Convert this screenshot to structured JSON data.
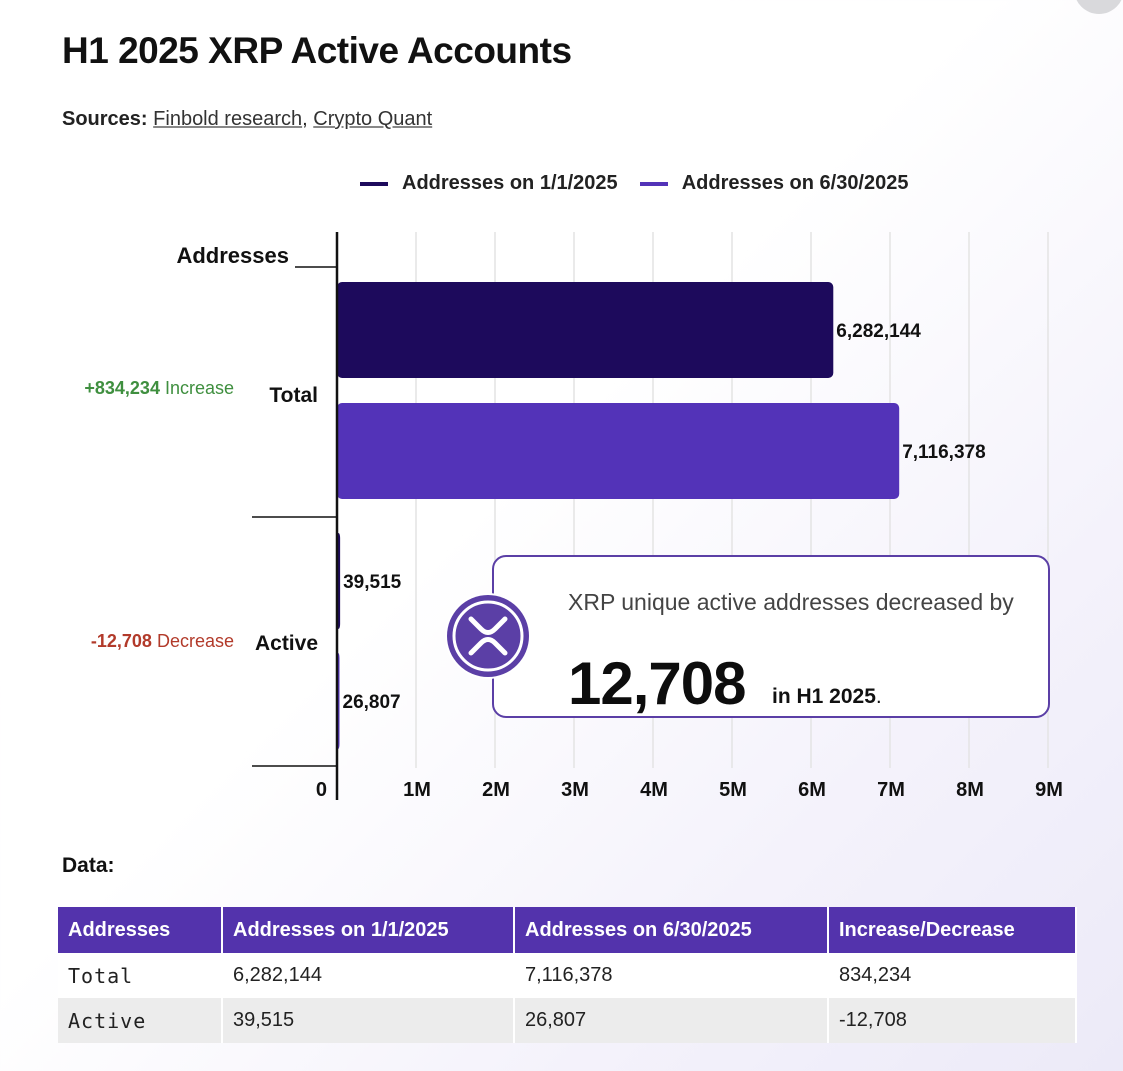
{
  "title": "H1 2025 XRP Active Accounts",
  "sources": {
    "label": "Sources:",
    "links": [
      "Finbold research",
      "Crypto Quant"
    ],
    "separator": ", "
  },
  "colors": {
    "series1": "#1d0a5c",
    "series2": "#5333b8",
    "increase": "#3f8f3f",
    "decrease": "#b23a2a",
    "grid": "#e4e4e4",
    "accent": "#5b3fa6"
  },
  "chart_data": {
    "type": "bar",
    "orientation": "horizontal",
    "axis_title": "Addresses",
    "categories": [
      "Total",
      "Active"
    ],
    "series": [
      {
        "name": "Addresses on 1/1/2025",
        "values": [
          6282144,
          39515
        ],
        "labels": [
          "6,282,144",
          "39,515"
        ]
      },
      {
        "name": "Addresses on 6/30/2025",
        "values": [
          7116378,
          26807
        ],
        "labels": [
          "7,116,378",
          "26,807"
        ]
      }
    ],
    "xlim": [
      0,
      9000000
    ],
    "x_ticks": [
      0,
      1000000,
      2000000,
      3000000,
      4000000,
      5000000,
      6000000,
      7000000,
      8000000,
      9000000
    ],
    "x_tick_labels": [
      "0",
      "1M",
      "2M",
      "3M",
      "4M",
      "5M",
      "6M",
      "7M",
      "8M",
      "9M"
    ],
    "grid": true,
    "legend_position": "top",
    "change_annotations": [
      {
        "value": "+834,234",
        "word": "Increase",
        "kind": "increase"
      },
      {
        "value": "-12,708",
        "word": "Decrease",
        "kind": "decrease"
      }
    ]
  },
  "callout": {
    "text": "XRP unique active addresses decreased by",
    "number": "12,708",
    "suffix": "in H1 2025",
    "icon": "xrp-logo-icon"
  },
  "data_table": {
    "heading": "Data:",
    "headers": [
      "Addresses",
      "Addresses on 1/1/2025",
      "Addresses on 6/30/2025",
      "Increase/Decrease"
    ],
    "rows": [
      [
        "Total",
        "6,282,144",
        "7,116,378",
        "834,234"
      ],
      [
        "Active",
        "39,515",
        "26,807",
        "-12,708"
      ]
    ]
  }
}
